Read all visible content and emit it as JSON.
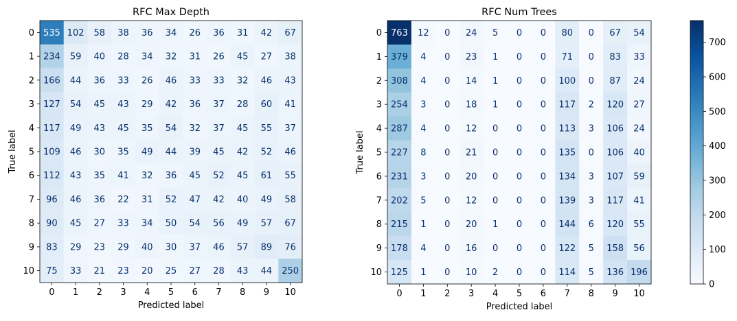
{
  "colormap": {
    "name": "Blues",
    "stops": [
      "#f7fbff",
      "#deebf7",
      "#c6dbef",
      "#9ecae1",
      "#6baed6",
      "#4292c6",
      "#2171b5",
      "#08519c",
      "#08306b"
    ],
    "label_dark": "#08306b",
    "label_light": "#ffffff"
  },
  "colorbar": {
    "min": 0,
    "max": 763,
    "ticks": [
      0,
      100,
      200,
      300,
      400,
      500,
      600,
      700
    ]
  },
  "chart_data": [
    {
      "type": "heatmap",
      "title": "RFC Max Depth",
      "xlabel": "Predicted label",
      "ylabel": "True label",
      "x_ticks": [
        "0",
        "1",
        "2",
        "3",
        "4",
        "5",
        "6",
        "7",
        "8",
        "9",
        "10"
      ],
      "y_ticks": [
        "0",
        "1",
        "2",
        "3",
        "4",
        "5",
        "6",
        "7",
        "8",
        "9",
        "10"
      ],
      "values": [
        [
          535,
          102,
          58,
          38,
          36,
          34,
          26,
          36,
          31,
          42,
          67
        ],
        [
          234,
          59,
          40,
          28,
          34,
          32,
          31,
          26,
          45,
          27,
          38
        ],
        [
          166,
          44,
          36,
          33,
          26,
          46,
          33,
          33,
          32,
          46,
          43
        ],
        [
          127,
          54,
          45,
          43,
          29,
          42,
          36,
          37,
          28,
          60,
          41
        ],
        [
          117,
          49,
          43,
          45,
          35,
          54,
          32,
          37,
          45,
          55,
          37
        ],
        [
          109,
          46,
          30,
          35,
          49,
          44,
          39,
          45,
          42,
          52,
          46
        ],
        [
          112,
          43,
          35,
          41,
          32,
          36,
          45,
          52,
          45,
          61,
          55
        ],
        [
          96,
          46,
          36,
          22,
          31,
          52,
          47,
          42,
          40,
          49,
          58
        ],
        [
          90,
          45,
          27,
          33,
          34,
          50,
          54,
          56,
          49,
          57,
          67
        ],
        [
          83,
          29,
          23,
          29,
          40,
          30,
          37,
          46,
          57,
          89,
          76
        ],
        [
          75,
          33,
          21,
          23,
          20,
          25,
          27,
          28,
          43,
          44,
          250
        ]
      ]
    },
    {
      "type": "heatmap",
      "title": "RFC Num Trees",
      "xlabel": "Predicted label",
      "ylabel": "True label",
      "x_ticks": [
        "0",
        "1",
        "2",
        "3",
        "4",
        "5",
        "6",
        "7",
        "8",
        "9",
        "10"
      ],
      "y_ticks": [
        "0",
        "1",
        "2",
        "3",
        "4",
        "5",
        "6",
        "7",
        "8",
        "9",
        "10"
      ],
      "values": [
        [
          763,
          12,
          0,
          24,
          5,
          0,
          0,
          80,
          0,
          67,
          54
        ],
        [
          379,
          4,
          0,
          23,
          1,
          0,
          0,
          71,
          0,
          83,
          33
        ],
        [
          308,
          4,
          0,
          14,
          1,
          0,
          0,
          100,
          0,
          87,
          24
        ],
        [
          254,
          3,
          0,
          18,
          1,
          0,
          0,
          117,
          2,
          120,
          27
        ],
        [
          287,
          4,
          0,
          12,
          0,
          0,
          0,
          113,
          3,
          106,
          24
        ],
        [
          227,
          8,
          0,
          21,
          0,
          0,
          0,
          135,
          0,
          106,
          40
        ],
        [
          231,
          3,
          0,
          20,
          0,
          0,
          0,
          134,
          3,
          107,
          59
        ],
        [
          202,
          5,
          0,
          12,
          0,
          0,
          0,
          139,
          3,
          117,
          41
        ],
        [
          215,
          1,
          0,
          20,
          1,
          0,
          0,
          144,
          6,
          120,
          55
        ],
        [
          178,
          4,
          0,
          16,
          0,
          0,
          0,
          122,
          5,
          158,
          56
        ],
        [
          125,
          1,
          0,
          10,
          2,
          0,
          0,
          114,
          5,
          136,
          196
        ]
      ]
    }
  ]
}
